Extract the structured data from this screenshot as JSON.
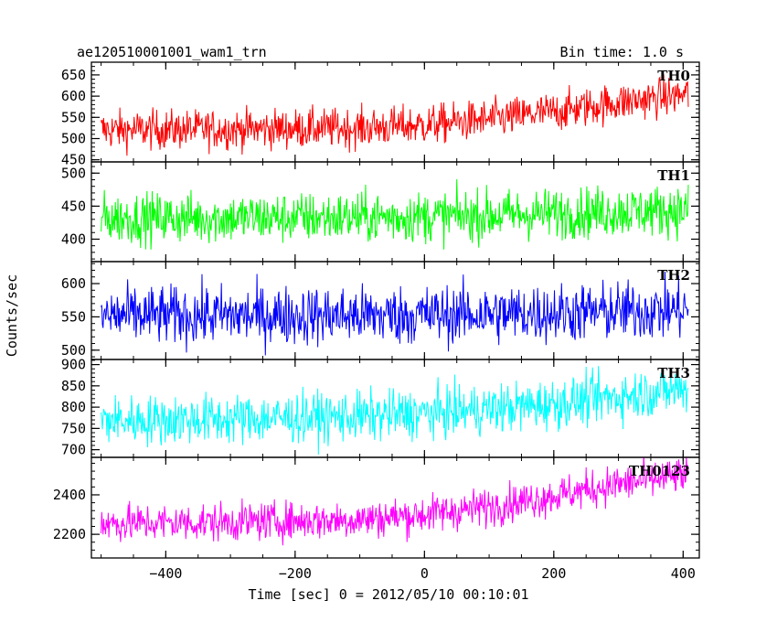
{
  "header": {
    "title": "ae120510001001_wam1_trn",
    "bin_time": "Bin time: 1.0 s"
  },
  "chart_data": {
    "type": "line",
    "xlabel": "Time [sec] 0 = 2012/05/10 00:10:01",
    "ylabel": "Counts/sec",
    "xlim": [
      -515,
      425
    ],
    "xticks": [
      -400,
      -200,
      0,
      200,
      400
    ],
    "x_range": [
      -500,
      408
    ],
    "bin_time_s": 1.0,
    "grid": false,
    "panels": [
      {
        "name": "TH0",
        "color": "#ff0000",
        "ylim": [
          445,
          680
        ],
        "yticks": [
          450,
          500,
          550,
          600,
          650
        ],
        "trend_x": [
          -500,
          -300,
          -100,
          0,
          100,
          200,
          300,
          408
        ],
        "trend_y": [
          520,
          522,
          525,
          532,
          545,
          563,
          585,
          605
        ],
        "noise": 23
      },
      {
        "name": "TH1",
        "color": "#00ff00",
        "ylim": [
          366,
          517
        ],
        "yticks": [
          400,
          450,
          500
        ],
        "trend_x": [
          -500,
          -300,
          -100,
          0,
          100,
          200,
          300,
          408
        ],
        "trend_y": [
          432,
          432,
          433,
          434,
          436,
          439,
          442,
          444
        ],
        "noise": 19
      },
      {
        "name": "TH2",
        "color": "#0000ff",
        "ylim": [
          486,
          633
        ],
        "yticks": [
          500,
          550,
          600
        ],
        "trend_x": [
          -500,
          -300,
          -100,
          0,
          100,
          200,
          300,
          408
        ],
        "trend_y": [
          552,
          552,
          552,
          553,
          554,
          556,
          558,
          561
        ],
        "noise": 22
      },
      {
        "name": "TH3",
        "color": "#00ffff",
        "ylim": [
          682,
          912
        ],
        "yticks": [
          700,
          750,
          800,
          850,
          900
        ],
        "trend_x": [
          -500,
          -300,
          -100,
          0,
          100,
          200,
          300,
          408
        ],
        "trend_y": [
          768,
          772,
          778,
          785,
          795,
          808,
          825,
          845
        ],
        "noise": 29
      },
      {
        "name": "TH0123",
        "color": "#ff00ff",
        "ylim": [
          2080,
          2590
        ],
        "yticks": [
          2200,
          2400
        ],
        "trend_x": [
          -500,
          -300,
          -100,
          0,
          100,
          200,
          300,
          408
        ],
        "trend_y": [
          2255,
          2262,
          2275,
          2300,
          2340,
          2395,
          2455,
          2500
        ],
        "noise": 48
      }
    ]
  }
}
